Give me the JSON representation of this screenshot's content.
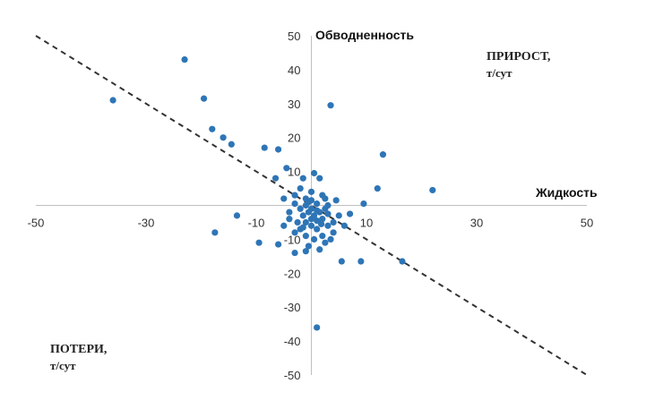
{
  "chart_data": {
    "type": "scatter",
    "xlabel": "Жидкость",
    "ylabel": "Обводненность",
    "xlim": [
      -50,
      50
    ],
    "ylim": [
      -50,
      50
    ],
    "xticks": [
      -50,
      -30,
      -10,
      10,
      30,
      50
    ],
    "yticks": [
      50,
      40,
      30,
      20,
      10,
      -10,
      -20,
      -30,
      -40,
      -50
    ],
    "grid": false,
    "marker_color": "#2e75b6",
    "trend_line": {
      "style": "dashed",
      "color": "#333333",
      "x": [
        -50,
        50
      ],
      "y": [
        50,
        -50
      ]
    },
    "quadrant_labels": {
      "top_right": {
        "line1": "ПРИРОСТ,",
        "line2": "т/сут"
      },
      "bottom_left": {
        "line1": "ПОТЕРИ,",
        "line2": "т/сут"
      }
    },
    "series": [
      {
        "points": [
          [
            -36,
            31
          ],
          [
            -23,
            43
          ],
          [
            -19.5,
            31.5
          ],
          [
            -18,
            22.5
          ],
          [
            -16,
            20
          ],
          [
            -14.5,
            18
          ],
          [
            -8.5,
            17
          ],
          [
            -6,
            16.5
          ],
          [
            3.5,
            29.5
          ],
          [
            13,
            15
          ],
          [
            22,
            4.5
          ],
          [
            12,
            5
          ],
          [
            9.5,
            0.5
          ],
          [
            4.5,
            1.5
          ],
          [
            7,
            -2.5
          ],
          [
            -13.5,
            -3
          ],
          [
            -17.5,
            -8
          ],
          [
            -9.5,
            -11
          ],
          [
            -6,
            -11.5
          ],
          [
            -3,
            -14
          ],
          [
            -1,
            -13.5
          ],
          [
            5.5,
            -16.5
          ],
          [
            9,
            -16.5
          ],
          [
            16.5,
            -16.5
          ],
          [
            1,
            -36
          ],
          [
            0.5,
            9.5
          ],
          [
            -1.5,
            8
          ],
          [
            1.5,
            8
          ],
          [
            -3,
            3
          ],
          [
            -2,
            5
          ],
          [
            0,
            4
          ],
          [
            2,
            3
          ],
          [
            -1,
            0
          ],
          [
            0,
            -1
          ],
          [
            1,
            0.5
          ],
          [
            -0.5,
            -2
          ],
          [
            0.5,
            -3
          ],
          [
            1.5,
            -2
          ],
          [
            2.5,
            -1
          ],
          [
            -1.5,
            -3
          ],
          [
            -2,
            -1
          ],
          [
            3,
            0
          ],
          [
            2,
            -4
          ],
          [
            -1,
            -5
          ],
          [
            0,
            -6
          ],
          [
            1,
            -7
          ],
          [
            -2,
            -7
          ],
          [
            3,
            -6
          ],
          [
            4,
            -5
          ],
          [
            -4,
            -4
          ],
          [
            -5,
            -6
          ],
          [
            -3,
            -8
          ],
          [
            2,
            -9
          ],
          [
            0.5,
            -10
          ],
          [
            -1,
            -9
          ],
          [
            4,
            -8
          ],
          [
            2.5,
            -11
          ],
          [
            -0.5,
            -12
          ],
          [
            1.5,
            -13
          ],
          [
            3.5,
            -10
          ],
          [
            -3,
            0.5
          ],
          [
            -5,
            2
          ],
          [
            2.5,
            2
          ],
          [
            -1,
            2
          ],
          [
            0,
            1.5
          ],
          [
            1,
            -1.5
          ],
          [
            -0.5,
            1
          ],
          [
            1.8,
            -5.5
          ],
          [
            -2.5,
            -5
          ],
          [
            5,
            -3
          ],
          [
            3,
            -2.5
          ],
          [
            -4,
            -2
          ],
          [
            6,
            -6
          ],
          [
            -6.5,
            8
          ],
          [
            -4.5,
            11
          ],
          [
            0,
            -4
          ],
          [
            1,
            -4.5
          ],
          [
            -1.5,
            -6.5
          ]
        ]
      }
    ]
  }
}
